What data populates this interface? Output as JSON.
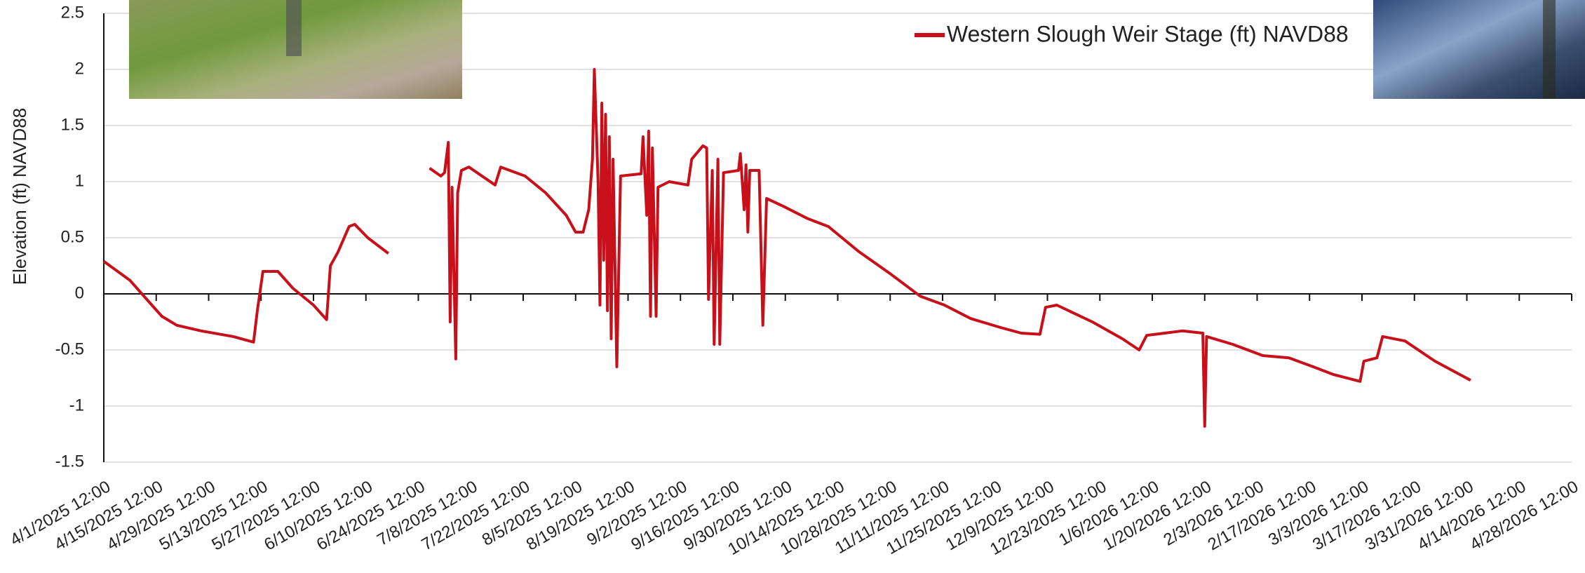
{
  "chart_data": {
    "type": "line",
    "ylabel": "Elevation (ft) NAVD88",
    "legend": "top-right",
    "grid": true,
    "ylim": [
      -1.5,
      2.5
    ],
    "yticks": [
      -1.5,
      -1,
      -0.5,
      0,
      0.5,
      1,
      1.5,
      2,
      2.5
    ],
    "xlim": [
      "4/1/2025 12:00",
      "4/28/2026 12:00"
    ],
    "xticks": [
      "4/1/2025 12:00",
      "4/15/2025 12:00",
      "4/29/2025 12:00",
      "5/13/2025 12:00",
      "5/27/2025 12:00",
      "6/10/2025 12:00",
      "6/24/2025 12:00",
      "7/8/2025 12:00",
      "7/22/2025 12:00",
      "8/5/2025 12:00",
      "8/19/2025 12:00",
      "9/2/2025 12:00",
      "9/16/2025 12:00",
      "9/30/2025 12:00",
      "10/14/2025 12:00",
      "10/28/2025 12:00",
      "11/11/2025 12:00",
      "11/25/2025 12:00",
      "12/9/2025 12:00",
      "12/23/2025 12:00",
      "1/6/2026 12:00",
      "1/20/2026 12:00",
      "2/3/2026 12:00",
      "2/17/2026 12:00",
      "3/3/2026 12:00",
      "3/17/2026 12:00",
      "3/31/2026 12:00",
      "4/14/2026 12:00",
      "4/28/2026 12:00"
    ],
    "x": [
      "4/1/2025 12:00",
      "4/8/2025 12:00",
      "4/13/2025 0:00",
      "4/17/2025 0:00",
      "4/21/2025 0:00",
      "4/27/2025 12:00",
      "5/6/2025 0:00",
      "5/11/2025 12:00",
      "5/12/2025 12:00",
      "5/14/2025 0:00",
      "5/18/2025 0:00",
      "5/22/2025 0:00",
      "5/27/2025 12:00",
      "5/31/2025 0:00",
      "6/1/2025 0:00",
      "6/3/2025 0:00",
      "6/6/2025 0:00",
      "6/7/2025 12:00",
      "6/11/2025 0:00",
      "6/16/2025 12:00",
      "6/20/2025 12:00",
      "6/27/2025 12:00",
      "6/30/2025 12:00",
      "7/1/2025 12:00",
      "7/2/2025 12:00",
      "7/3/2025 0:00",
      "7/3/2025 12:00",
      "7/4/2025 12:00",
      "7/5/2025 0:00",
      "7/6/2025 0:00",
      "7/8/2025 0:00",
      "7/15/2025 0:00",
      "7/16/2025 12:00",
      "7/23/2025 0:00",
      "7/28/2025 12:00",
      "8/3/2025 0:00",
      "8/5/2025 12:00",
      "8/7/2025 12:00",
      "8/9/2025 0:00",
      "8/10/2025 0:00",
      "8/10/2025 12:00",
      "8/11/2025 12:00",
      "8/12/2025 0:00",
      "8/12/2025 12:00",
      "8/13/2025 0:00",
      "8/13/2025 12:00",
      "8/14/2025 0:00",
      "8/14/2025 12:00",
      "8/15/2025 0:00",
      "8/15/2025 12:00",
      "8/16/2025 12:00",
      "8/17/2025 12:00",
      "8/23/2025 0:00",
      "8/23/2025 12:00",
      "8/24/2025 12:00",
      "8/25/2025 0:00",
      "8/25/2025 12:00",
      "8/26/2025 0:00",
      "8/27/2025 0:00",
      "8/27/2025 12:00",
      "8/30/2025 12:00",
      "9/4/2025 12:00",
      "9/5/2025 12:00",
      "9/8/2025 12:00",
      "9/9/2025 12:00",
      "9/10/2025 0:00",
      "9/11/2025 0:00",
      "9/11/2025 12:00",
      "9/12/2025 12:00",
      "9/13/2025 0:00",
      "9/14/2025 0:00",
      "9/18/2025 0:00",
      "9/18/2025 12:00",
      "9/19/2025 12:00",
      "9/20/2025 0:00",
      "9/20/2025 12:00",
      "9/21/2025 0:00",
      "9/23/2025 12:00",
      "9/24/2025 12:00",
      "9/25/2025 12:00",
      "9/30/2025 0:00",
      "10/6/2025 12:00",
      "10/12/2025 0:00",
      "10/20/2025 0:00",
      "10/28/2025 12:00",
      "11/5/2025 12:00",
      "11/12/2025 0:00",
      "11/19/2025 0:00",
      "11/27/2025 0:00",
      "12/2/2025 12:00",
      "12/7/2025 12:00",
      "12/9/2025 0:00",
      "12/12/2025 0:00",
      "12/21/2025 12:00",
      "12/29/2025 12:00",
      "1/3/2026 0:00",
      "1/5/2026 0:00",
      "1/14/2026 12:00",
      "1/20/2026 0:00",
      "1/20/2026 12:00",
      "1/21/2026 0:00",
      "1/28/2026 0:00",
      "2/5/2026 0:00",
      "2/12/2026 0:00",
      "2/18/2026 12:00",
      "2/24/2026 0:00",
      "3/3/2026 0:00",
      "3/4/2026 0:00",
      "3/7/2026 12:00",
      "3/9/2026 0:00",
      "3/15/2026 0:00",
      "3/23/2026 0:00",
      "4/1/2026 12:00"
    ],
    "series": [
      {
        "name": "Western Slough Weir Stage (ft) NAVD88",
        "color": "#c8101a",
        "values": [
          0.29,
          0.12,
          -0.05,
          -0.2,
          -0.28,
          -0.33,
          -0.38,
          -0.43,
          -0.15,
          0.2,
          0.2,
          0.05,
          -0.1,
          -0.23,
          0.25,
          0.37,
          0.6,
          0.62,
          0.5,
          0.36,
          null,
          1.12,
          1.05,
          1.08,
          1.35,
          -0.25,
          0.95,
          -0.58,
          0.9,
          1.1,
          1.13,
          0.97,
          1.13,
          1.05,
          0.9,
          0.7,
          0.55,
          0.55,
          0.75,
          1.2,
          2.0,
          1.0,
          -0.1,
          1.7,
          0.3,
          1.6,
          -0.15,
          1.4,
          -0.4,
          1.2,
          -0.65,
          1.05,
          1.07,
          1.4,
          0.7,
          1.45,
          -0.2,
          1.3,
          -0.2,
          0.95,
          1.0,
          0.97,
          1.2,
          1.32,
          1.3,
          -0.05,
          1.1,
          -0.45,
          1.2,
          -0.45,
          1.08,
          1.1,
          1.25,
          0.75,
          1.15,
          0.55,
          1.1,
          1.1,
          -0.28,
          0.85,
          0.78,
          0.67,
          0.6,
          0.38,
          0.18,
          -0.02,
          -0.1,
          -0.22,
          -0.3,
          -0.35,
          -0.36,
          -0.12,
          -0.1,
          -0.25,
          -0.4,
          -0.5,
          -0.37,
          -0.33,
          -0.35,
          -1.18,
          -0.38,
          -0.45,
          -0.55,
          -0.57,
          -0.65,
          -0.72,
          -0.78,
          -0.6,
          -0.57,
          -0.38,
          -0.42,
          -0.6,
          -0.77
        ]
      }
    ]
  }
}
